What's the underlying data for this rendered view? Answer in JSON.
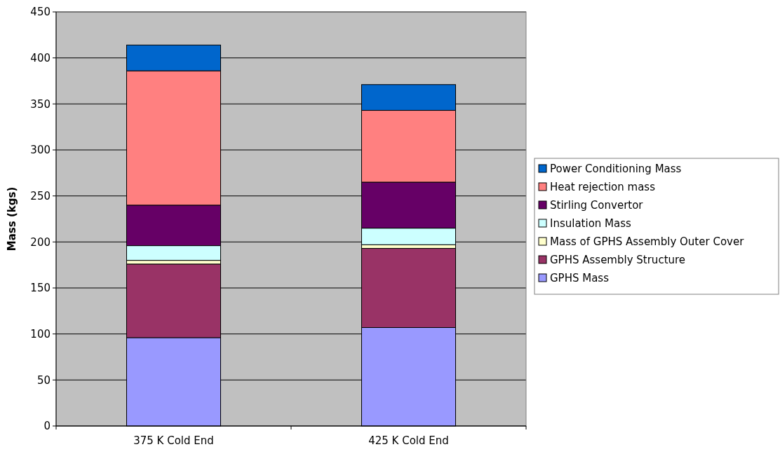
{
  "chart_data": {
    "type": "bar",
    "stacked": true,
    "ylabel": "Mass (kgs)",
    "categories": [
      "375 K Cold End",
      "425 K Cold End"
    ],
    "ylim": [
      0,
      450
    ],
    "yticks": [
      0,
      50,
      100,
      150,
      200,
      250,
      300,
      350,
      400,
      450
    ],
    "grid": "y",
    "legend": "right",
    "series": [
      {
        "name": "GPHS Mass",
        "color": "#9999ff",
        "values": [
          96,
          107
        ]
      },
      {
        "name": "GPHS Assembly Structure",
        "color": "#993366",
        "values": [
          80,
          86
        ]
      },
      {
        "name": "Mass of GPHS Assembly Outer Cover",
        "color": "#ffffcc",
        "values": [
          4,
          4
        ]
      },
      {
        "name": "Insulation Mass",
        "color": "#ccffff",
        "values": [
          16,
          18
        ]
      },
      {
        "name": "Stirling Convertor",
        "color": "#660066",
        "values": [
          44,
          50
        ]
      },
      {
        "name": "Heat rejection mass",
        "color": "#ff8080",
        "values": [
          146,
          78
        ]
      },
      {
        "name": "Power Conditioning Mass",
        "color": "#0066cc",
        "values": [
          28,
          28
        ]
      }
    ]
  }
}
